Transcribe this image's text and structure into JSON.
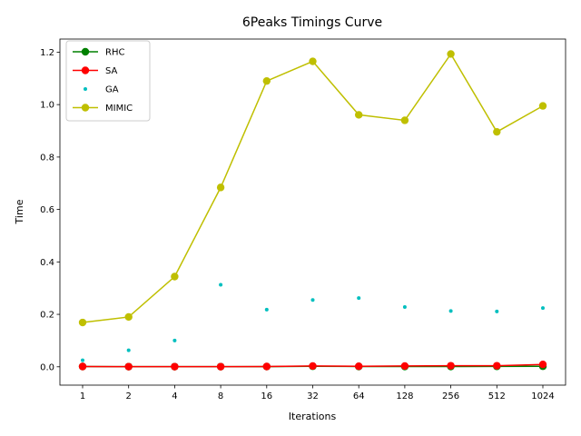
{
  "chart_data": {
    "type": "line",
    "title": "6Peaks Timings Curve",
    "xlabel": "Iterations",
    "ylabel": "Time",
    "categories": [
      "1",
      "2",
      "4",
      "8",
      "16",
      "32",
      "64",
      "128",
      "256",
      "512",
      "1024"
    ],
    "ylim": [
      -0.07,
      1.25
    ],
    "yticks": [
      "0.0",
      "0.2",
      "0.4",
      "0.6",
      "0.8",
      "1.0",
      "1.2"
    ],
    "legend_position": "top-left",
    "grid": false,
    "series": [
      {
        "name": "RHC",
        "color": "#008000",
        "style": "line-marker",
        "values": [
          0.001,
          0.0005,
          0.0005,
          0.0005,
          0.0008,
          0.002,
          0.001,
          0.001,
          0.001,
          0.0015,
          0.002
        ]
      },
      {
        "name": "SA",
        "color": "#ff0000",
        "style": "line-marker",
        "values": [
          0.001,
          0.0005,
          0.0005,
          0.0005,
          0.001,
          0.003,
          0.002,
          0.003,
          0.004,
          0.004,
          0.009
        ]
      },
      {
        "name": "GA",
        "color": "#00bfbf",
        "style": "point",
        "values": [
          0.025,
          0.063,
          0.1,
          0.313,
          0.218,
          0.255,
          0.262,
          0.228,
          0.213,
          0.211,
          0.224
        ]
      },
      {
        "name": "MIMIC",
        "color": "#bfbf00",
        "style": "line-marker",
        "values": [
          0.169,
          0.19,
          0.344,
          0.684,
          1.09,
          1.165,
          0.961,
          0.94,
          1.193,
          0.896,
          0.995
        ]
      }
    ]
  }
}
